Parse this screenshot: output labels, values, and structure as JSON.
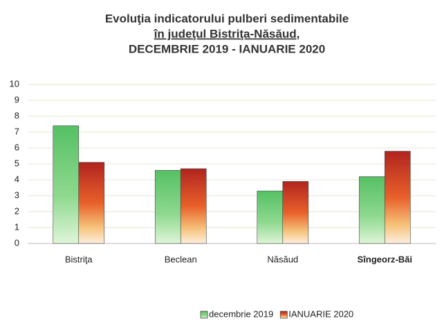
{
  "chart_data": {
    "type": "bar",
    "title": [
      "Evoluţia indicatorului pulberi sedimentabile",
      "în judeţul Bistriţa-Năsăud,",
      "DECEMBRIE  2019 - IANUARIE 2020"
    ],
    "categories": [
      "Bistriţa",
      "Beclean",
      "Năsăud",
      "Sîngeorz-Băi"
    ],
    "series": [
      {
        "name": "decembrie 2019",
        "color": "#5cc36b",
        "values": [
          7.4,
          4.6,
          3.3,
          4.2
        ]
      },
      {
        "name": "IANUARIE 2020",
        "color": "#c0302a",
        "values": [
          5.1,
          4.7,
          3.9,
          5.8
        ]
      }
    ],
    "ylim": [
      0,
      10
    ],
    "yticks": [
      0,
      1,
      2,
      3,
      4,
      5,
      6,
      7,
      8,
      9,
      10
    ],
    "grid": true,
    "legend": "bottom-right"
  }
}
